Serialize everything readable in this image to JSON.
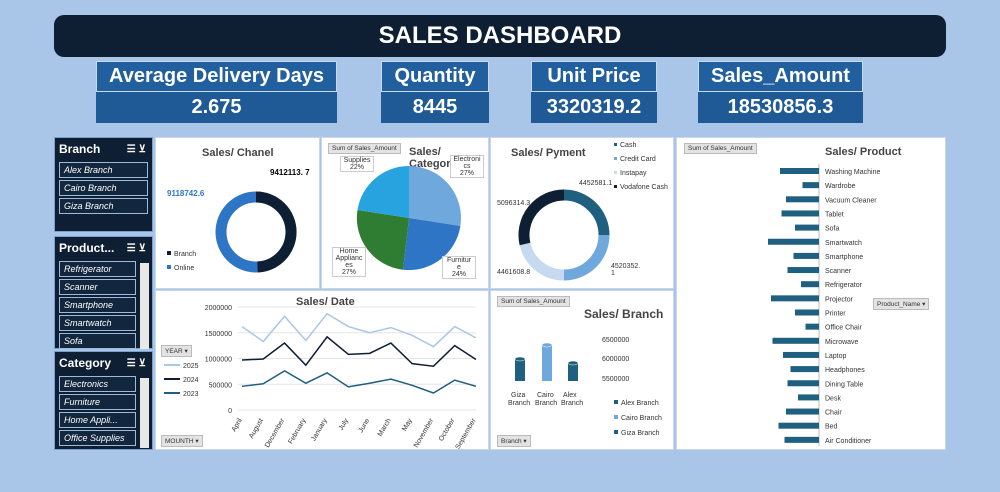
{
  "header": {
    "title": "SALES DASHBOARD"
  },
  "kpis": [
    {
      "label": "Average Delivery Days",
      "value": "2.675"
    },
    {
      "label": "Quantity",
      "value": "8445"
    },
    {
      "label": "Unit Price",
      "value": "3320319.2"
    },
    {
      "label": "Sales_Amount",
      "value": "18530856.3"
    }
  ],
  "slicers": {
    "branch": {
      "title": "Branch",
      "items": [
        "Alex Branch",
        "Cairo Branch",
        "Giza Branch"
      ]
    },
    "product": {
      "title": "Product...",
      "items": [
        "Refrigerator",
        "Scanner",
        "Smartphone",
        "Smartwatch",
        "Sofa"
      ]
    },
    "category": {
      "title": "Category",
      "items": [
        "Electronics",
        "Furniture",
        "Home Appli...",
        "Office Supplies"
      ]
    }
  },
  "colors": {
    "navy": "#0f1f33",
    "blue": "#2e75c6",
    "light_blue": "#6fa8dc",
    "green": "#2e7d32",
    "sky": "#27a3df",
    "dark_teal": "#1f5f7f",
    "pale": "#c5d9f1"
  },
  "charts": {
    "channel": {
      "title": "Sales/ Chanel",
      "labels": {
        "branch_value": "9412113.\n7",
        "online_value": "9118742.6"
      },
      "legend": [
        "Branch",
        "Online"
      ]
    },
    "category": {
      "title": "Sales/ Category",
      "pill": "Sum of Sales_Amount",
      "labels": [
        "Electroni\ncs\n27%",
        "Furnitur\ne\n24%",
        "Home\nApplianc\nes\n27%",
        "Supplies\n22%"
      ]
    },
    "payment": {
      "title": "Sales/ Pyment",
      "legend": [
        "Cash",
        "Credit Card",
        "Instapay",
        "Vodafone Cash"
      ],
      "labels": [
        "4452581.1",
        "4520352.\n1",
        "4461608.8",
        "5096314.3"
      ]
    },
    "product": {
      "title": "Sales/ Product",
      "pill": "Sum of Sales_Amount",
      "filter": "Product_Name",
      "items": [
        "Washing Machine",
        "Wardrobe",
        "Vacuum Cleaner",
        "Tablet",
        "Sofa",
        "Smartwatch",
        "Smartphone",
        "Scanner",
        "Refrigerator",
        "Projector",
        "Printer",
        "Office Chair",
        "Microwave",
        "Laptop",
        "Headphones",
        "Dining Table",
        "Desk",
        "Chair",
        "Bed",
        "Air Conditioner"
      ]
    },
    "date": {
      "title": "Sales/ Date",
      "year_filter": "YEAR",
      "month_filter": "MOUNTH",
      "yticks": [
        "2000000",
        "1500000",
        "1000000",
        "500000",
        "0"
      ],
      "legend": [
        "2025",
        "2024",
        "2023"
      ]
    },
    "branch": {
      "title": "Sales/ Branch",
      "pill": "Sum of Sales_Amount",
      "filter": "Branch",
      "yticks": [
        "6500000",
        "6000000",
        "5500000"
      ],
      "legend": [
        "Alex Branch",
        "Cairo Branch",
        "Giza Branch"
      ]
    }
  },
  "chart_data": [
    {
      "type": "pie",
      "title": "Sales/ Chanel",
      "categories": [
        "Branch",
        "Online"
      ],
      "values": [
        9412113.7,
        9118742.6
      ]
    },
    {
      "type": "pie",
      "title": "Sales/ Category",
      "categories": [
        "Electronics",
        "Furniture",
        "Home Appliances",
        "Office Supplies"
      ],
      "values": [
        27,
        24,
        27,
        22
      ]
    },
    {
      "type": "pie",
      "title": "Sales/ Pyment",
      "categories": [
        "Cash",
        "Credit Card",
        "Instapay",
        "Vodafone Cash"
      ],
      "values": [
        4452581.1,
        4520352.1,
        4461608.8,
        5096314.3
      ]
    },
    {
      "type": "bar",
      "title": "Sales/ Product",
      "categories": [
        "Washing Machine",
        "Wardrobe",
        "Vacuum Cleaner",
        "Tablet",
        "Sofa",
        "Smartwatch",
        "Smartphone",
        "Scanner",
        "Refrigerator",
        "Projector",
        "Printer",
        "Office Chair",
        "Microwave",
        "Laptop",
        "Headphones",
        "Dining Table",
        "Desk",
        "Chair",
        "Bed",
        "Air Conditioner"
      ],
      "values": [
        1.3,
        0.55,
        1.1,
        1.25,
        0.8,
        1.7,
        0.85,
        1.05,
        0.6,
        1.6,
        0.8,
        0.45,
        1.55,
        1.2,
        0.95,
        1.05,
        0.7,
        1.1,
        1.35,
        1.15
      ]
    },
    {
      "type": "line",
      "title": "Sales/ Date",
      "categories": [
        "April",
        "August",
        "December",
        "February",
        "January",
        "July",
        "June",
        "March",
        "May",
        "November",
        "October",
        "September"
      ],
      "ylim": [
        0,
        2000000
      ],
      "series": [
        {
          "name": "2025",
          "values": [
            1620000,
            1330000,
            1820000,
            1350000,
            1870000,
            1620000,
            1500000,
            1600000,
            1450000,
            1230000,
            1620000,
            1400000
          ]
        },
        {
          "name": "2024",
          "values": [
            970000,
            990000,
            1300000,
            870000,
            1420000,
            1080000,
            1100000,
            1300000,
            900000,
            850000,
            1250000,
            980000
          ]
        },
        {
          "name": "2023",
          "values": [
            460000,
            510000,
            760000,
            520000,
            720000,
            450000,
            520000,
            600000,
            480000,
            330000,
            580000,
            460000
          ]
        }
      ]
    },
    {
      "type": "bar",
      "title": "Sales/ Branch",
      "categories": [
        "Giza Branch",
        "Cairo Branch",
        "Alex Branch"
      ],
      "values": [
        6000000,
        6350000,
        5900000
      ],
      "ylim": [
        5500000,
        6500000
      ]
    }
  ]
}
